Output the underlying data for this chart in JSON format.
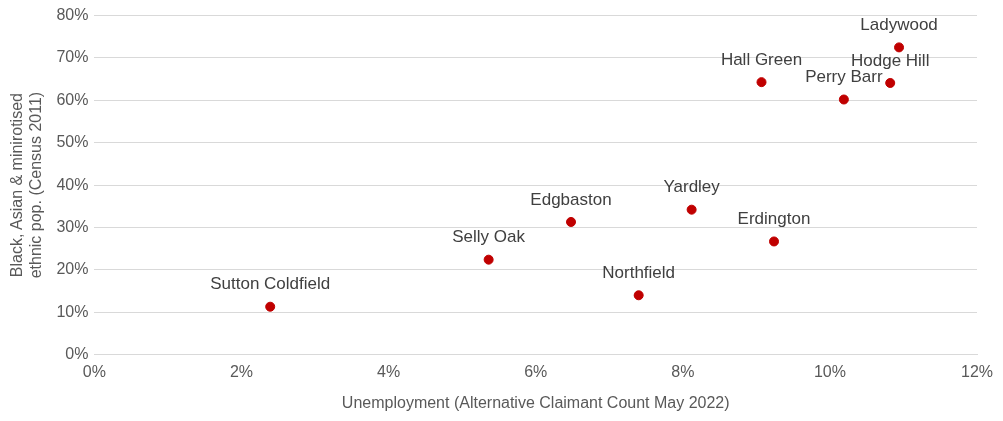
{
  "chart_data": {
    "type": "scatter",
    "xlabel": "Unemployment (Alternative Claimant Count May 2022)",
    "ylabel": "Black, Asian & minirotised ethnic pop. (Census 2011)",
    "x": [
      2.39,
      5.36,
      6.48,
      7.4,
      8.12,
      9.24,
      9.07,
      10.19,
      10.82,
      10.94
    ],
    "series": [
      {
        "color": "#c00000",
        "values": [
          11.3,
          22.4,
          31.3,
          14.0,
          34.2,
          26.7,
          64.3,
          60.2,
          64.1,
          72.5
        ]
      }
    ],
    "annotations": [
      {
        "text": "Sutton Coldfield",
        "x": 2.39,
        "y": 11.3
      },
      {
        "text": "Selly Oak",
        "x": 5.36,
        "y": 22.4
      },
      {
        "text": "Edgbaston",
        "x": 6.48,
        "y": 31.3
      },
      {
        "text": "Northfield",
        "x": 7.4,
        "y": 14.0
      },
      {
        "text": "Yardley",
        "x": 8.12,
        "y": 34.2
      },
      {
        "text": "Erdington",
        "x": 9.24,
        "y": 26.7
      },
      {
        "text": "Hall Green",
        "x": 9.07,
        "y": 64.3
      },
      {
        "text": "Perry Barr",
        "x": 10.19,
        "y": 60.2
      },
      {
        "text": "Hodge Hill",
        "x": 10.82,
        "y": 64.1
      },
      {
        "text": "Ladywood",
        "x": 10.94,
        "y": 72.5
      }
    ],
    "xlim": [
      0,
      12
    ],
    "xticks": [
      {
        "value": 0,
        "label": "0%"
      },
      {
        "value": 2,
        "label": "2%"
      },
      {
        "value": 4,
        "label": "4%"
      },
      {
        "value": 6,
        "label": "6%"
      },
      {
        "value": 8,
        "label": "8%"
      },
      {
        "value": 10,
        "label": "10%"
      },
      {
        "value": 12,
        "label": "12%"
      }
    ],
    "ylim": [
      0,
      80
    ],
    "yticks": [
      {
        "value": 0,
        "label": "0%"
      },
      {
        "value": 10,
        "label": "10%"
      },
      {
        "value": 20,
        "label": "20%"
      },
      {
        "value": 30,
        "label": "30%"
      },
      {
        "value": 40,
        "label": "40%"
      },
      {
        "value": 50,
        "label": "50%"
      },
      {
        "value": 60,
        "label": "60%"
      },
      {
        "value": 70,
        "label": "70%"
      },
      {
        "value": 80,
        "label": "80%"
      }
    ],
    "grid": "y",
    "marker": "circle",
    "legend": false
  }
}
